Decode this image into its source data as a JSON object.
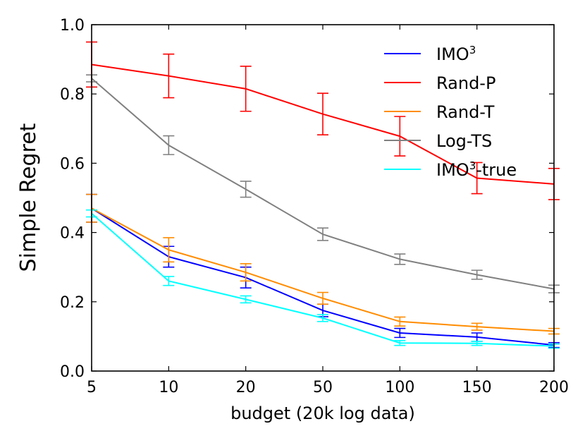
{
  "chart_data": {
    "type": "line",
    "title": "",
    "xlabel": "budget (20k log data)",
    "ylabel": "Simple Regret",
    "categories": [
      "5",
      "10",
      "20",
      "50",
      "100",
      "150",
      "200"
    ],
    "ylim": [
      0.0,
      1.0
    ],
    "yticks": [
      "0.0",
      "0.2",
      "0.4",
      "0.6",
      "0.8",
      "1.0"
    ],
    "grid": false,
    "legend_position": "top-right",
    "series": [
      {
        "name": "IMO",
        "sup": "3",
        "suffix": "",
        "color": "#0000ff",
        "values": [
          0.47,
          0.33,
          0.27,
          0.175,
          0.11,
          0.098,
          0.075
        ],
        "errors": [
          0.04,
          0.03,
          0.03,
          0.018,
          0.013,
          0.012,
          0.007
        ]
      },
      {
        "name": "Rand-P",
        "sup": "",
        "suffix": "",
        "color": "#ff0000",
        "values": [
          0.885,
          0.852,
          0.815,
          0.742,
          0.678,
          0.557,
          0.54
        ],
        "errors": [
          0.065,
          0.063,
          0.065,
          0.06,
          0.057,
          0.045,
          0.045
        ]
      },
      {
        "name": "Rand-T",
        "sup": "",
        "suffix": "",
        "color": "#ff8c00",
        "values": [
          0.47,
          0.35,
          0.285,
          0.21,
          0.143,
          0.128,
          0.115
        ],
        "errors": [
          0.04,
          0.035,
          0.025,
          0.017,
          0.013,
          0.01,
          0.008
        ]
      },
      {
        "name": "Log-TS",
        "sup": "",
        "suffix": "",
        "color": "#808080",
        "values": [
          0.845,
          0.652,
          0.525,
          0.395,
          0.323,
          0.278,
          0.237
        ],
        "errors": [
          0.01,
          0.027,
          0.023,
          0.018,
          0.015,
          0.013,
          0.011
        ]
      },
      {
        "name": "IMO",
        "sup": "3",
        "suffix": "-true",
        "color": "#00ffff",
        "values": [
          0.455,
          0.26,
          0.207,
          0.153,
          0.081,
          0.08,
          0.072
        ],
        "errors": [
          0.01,
          0.013,
          0.01,
          0.01,
          0.007,
          0.006,
          0.006
        ]
      }
    ]
  }
}
